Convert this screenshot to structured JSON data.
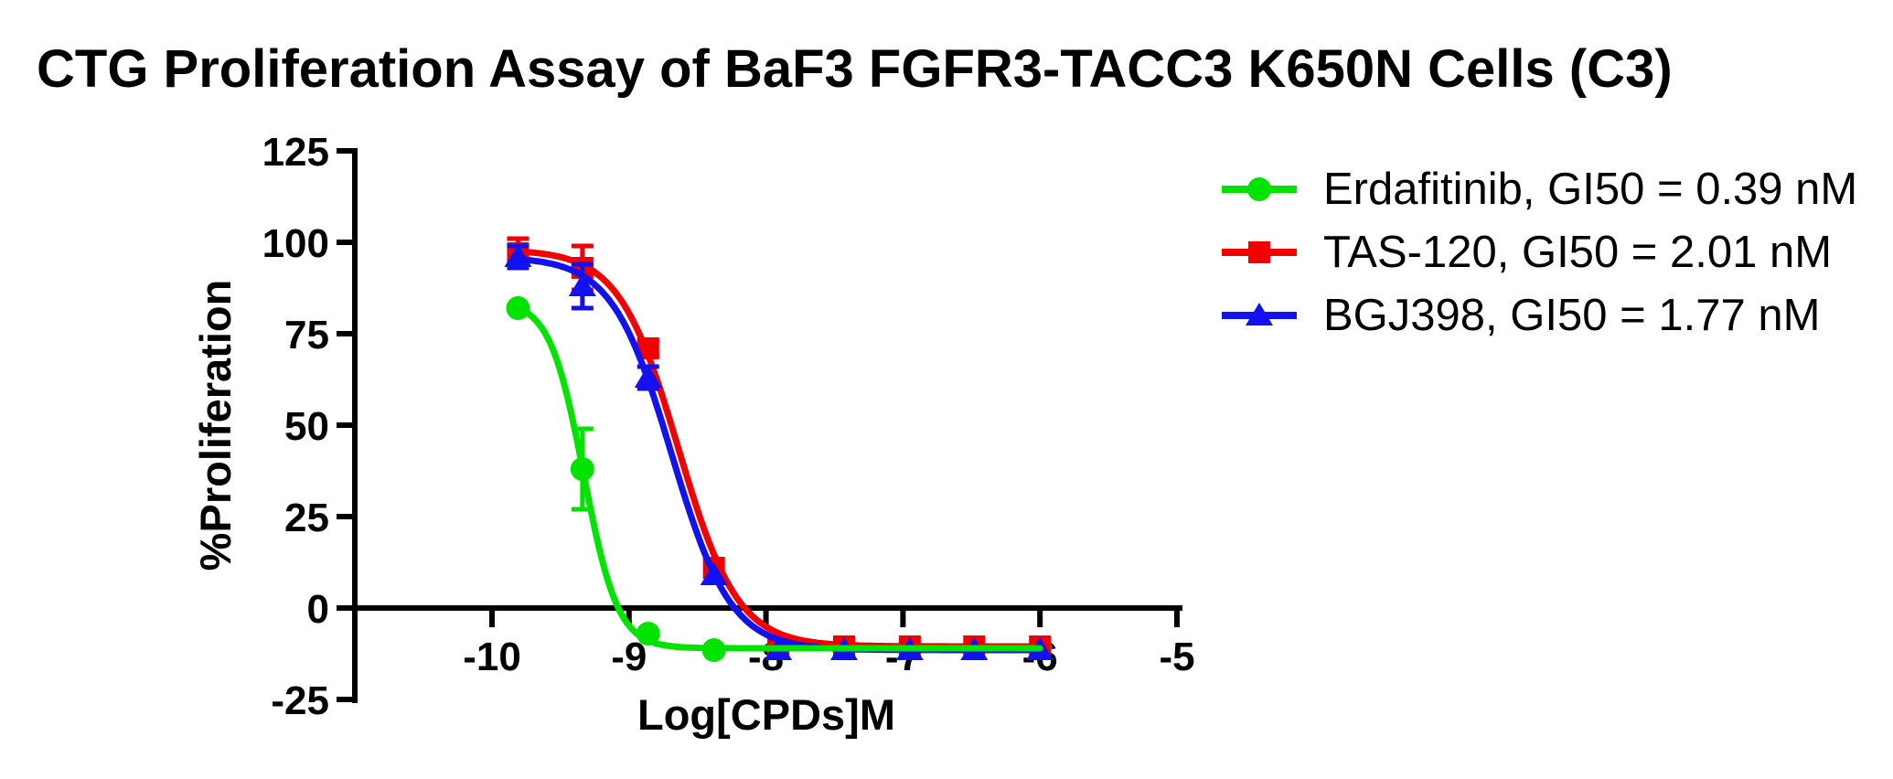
{
  "title": "CTG Proliferation Assay of BaF3 FGFR3-TACC3 K650N Cells (C3)",
  "chart_data": {
    "type": "line",
    "title": "CTG Proliferation Assay of BaF3 FGFR3-TACC3 K650N Cells (C3)",
    "xlabel": "Log[CPDs]M",
    "ylabel": "%Proliferation",
    "xlim": [
      -11,
      -4.97
    ],
    "ylim": [
      -25,
      125
    ],
    "xticks": [
      -10,
      -9,
      -8,
      -7,
      -6,
      -5
    ],
    "yticks": [
      125,
      100,
      75,
      50,
      25,
      0,
      -25
    ],
    "grid": false,
    "legend_position": "right",
    "x": [
      -9.81,
      -9.34,
      -8.86,
      -8.38,
      -7.91,
      -7.43,
      -6.95,
      -6.48,
      -6.0
    ],
    "series": [
      {
        "name": "Erdafitinib",
        "legend_label": "Erdafitinib, GI50 = 0.39 nM",
        "gi50": "0.39 nM",
        "color": "#00e400",
        "marker": "circle",
        "values": [
          82,
          38,
          -7,
          -11.5,
          -11,
          -11,
          -11,
          -11,
          -11
        ],
        "errors": [
          0,
          11,
          0,
          0,
          0,
          0,
          0,
          0,
          0
        ],
        "fit": {
          "top": 84,
          "bottom": -11,
          "logec50": -9.33,
          "hill": 3.5
        }
      },
      {
        "name": "TAS-120",
        "legend_label": "TAS-120, GI50 = 2.01 nM",
        "gi50": "2.01 nM",
        "color": "#f30000",
        "marker": "square",
        "values": [
          97,
          93,
          71,
          11,
          -10.5,
          -10.5,
          -10.5,
          -10.5,
          -10.5
        ],
        "errors": [
          4,
          6,
          2,
          0,
          0,
          0,
          0,
          0,
          0
        ],
        "fit": {
          "top": 98,
          "bottom": -10.5,
          "logec50": -8.64,
          "hill": 2.0
        }
      },
      {
        "name": "BGJ398",
        "legend_label": "BGJ398, GI50 = 1.77 nM",
        "gi50": "1.77 nM",
        "color": "#1212f0",
        "marker": "triangle",
        "values": [
          96,
          88,
          63,
          9,
          -11.5,
          -11.5,
          -11.5,
          -11.5,
          -11.5
        ],
        "errors": [
          3,
          6,
          3,
          0,
          0,
          0,
          0,
          0,
          0
        ],
        "fit": {
          "top": 96,
          "bottom": -11.5,
          "logec50": -8.69,
          "hill": 2.0
        }
      }
    ]
  }
}
